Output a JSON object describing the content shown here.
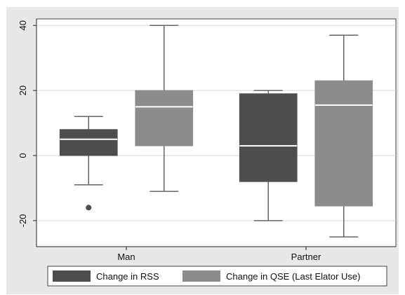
{
  "chart_data": {
    "type": "box",
    "categories": [
      "Man",
      "Partner"
    ],
    "ylim": [
      -28,
      42
    ],
    "yticks": [
      -20,
      0,
      20,
      40
    ],
    "ytick_labels": [
      "-20",
      "0",
      "20",
      "40"
    ],
    "grid": true,
    "legend_position": "bottom",
    "series": [
      {
        "name": "Change in RSS",
        "color": "#4d4d4d",
        "boxes": [
          {
            "category": "Man",
            "whisker_low": -9,
            "q1": 0,
            "median": 5,
            "q3": 8,
            "whisker_high": 12,
            "outliers": [
              -16
            ]
          },
          {
            "category": "Partner",
            "whisker_low": -20,
            "q1": -8,
            "median": 3,
            "q3": 19,
            "whisker_high": 20,
            "outliers": []
          }
        ]
      },
      {
        "name": "Change in QSE (Last Elator Use)",
        "color": "#8c8c8c",
        "boxes": [
          {
            "category": "Man",
            "whisker_low": -11,
            "q1": 3,
            "median": 15,
            "q3": 20,
            "whisker_high": 40,
            "outliers": []
          },
          {
            "category": "Partner",
            "whisker_low": -25,
            "q1": -15.5,
            "median": 15.5,
            "q3": 23,
            "whisker_high": 37,
            "outliers": []
          }
        ]
      }
    ]
  }
}
